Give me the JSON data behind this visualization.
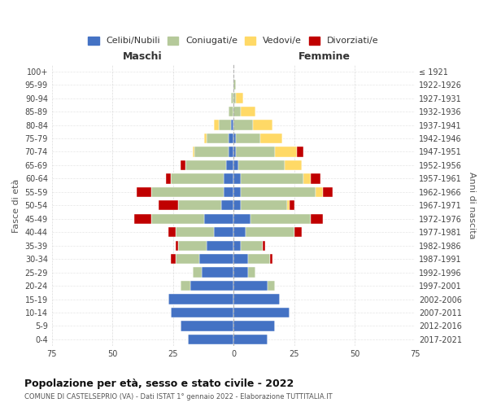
{
  "age_groups": [
    "0-4",
    "5-9",
    "10-14",
    "15-19",
    "20-24",
    "25-29",
    "30-34",
    "35-39",
    "40-44",
    "45-49",
    "50-54",
    "55-59",
    "60-64",
    "65-69",
    "70-74",
    "75-79",
    "80-84",
    "85-89",
    "90-94",
    "95-99",
    "100+"
  ],
  "birth_years": [
    "2017-2021",
    "2012-2016",
    "2007-2011",
    "2002-2006",
    "1997-2001",
    "1992-1996",
    "1987-1991",
    "1982-1986",
    "1977-1981",
    "1972-1976",
    "1967-1971",
    "1962-1966",
    "1957-1961",
    "1952-1956",
    "1947-1951",
    "1942-1946",
    "1937-1941",
    "1932-1936",
    "1927-1931",
    "1922-1926",
    "≤ 1921"
  ],
  "maschi": {
    "celibi": [
      19,
      22,
      26,
      27,
      18,
      13,
      14,
      11,
      8,
      12,
      5,
      4,
      4,
      3,
      2,
      2,
      1,
      0,
      0,
      0,
      0
    ],
    "coniugati": [
      0,
      0,
      0,
      0,
      4,
      4,
      10,
      12,
      16,
      22,
      18,
      30,
      22,
      17,
      14,
      9,
      5,
      2,
      1,
      0,
      0
    ],
    "vedovi": [
      0,
      0,
      0,
      0,
      0,
      0,
      0,
      0,
      0,
      0,
      0,
      0,
      0,
      0,
      1,
      1,
      2,
      0,
      0,
      0,
      0
    ],
    "divorziati": [
      0,
      0,
      0,
      0,
      0,
      0,
      2,
      1,
      3,
      7,
      8,
      6,
      2,
      2,
      0,
      0,
      0,
      0,
      0,
      0,
      0
    ]
  },
  "femmine": {
    "nubili": [
      14,
      17,
      23,
      19,
      14,
      6,
      6,
      3,
      5,
      7,
      3,
      3,
      3,
      2,
      1,
      1,
      0,
      0,
      0,
      0,
      0
    ],
    "coniugate": [
      0,
      0,
      0,
      0,
      3,
      3,
      9,
      9,
      20,
      25,
      19,
      31,
      26,
      19,
      16,
      10,
      8,
      3,
      1,
      1,
      0
    ],
    "vedove": [
      0,
      0,
      0,
      0,
      0,
      0,
      0,
      0,
      0,
      0,
      1,
      3,
      3,
      7,
      9,
      9,
      8,
      6,
      3,
      0,
      0
    ],
    "divorziate": [
      0,
      0,
      0,
      0,
      0,
      0,
      1,
      1,
      3,
      5,
      2,
      4,
      4,
      0,
      3,
      0,
      0,
      0,
      0,
      0,
      0
    ]
  },
  "colors": {
    "celibi": "#4472c4",
    "coniugati": "#b5c99a",
    "vedovi": "#ffd966",
    "divorziati": "#c00000"
  },
  "title": "Popolazione per età, sesso e stato civile - 2022",
  "subtitle": "COMUNE DI CASTELSEPRIO (VA) - Dati ISTAT 1° gennaio 2022 - Elaborazione TUTTITALIA.IT",
  "xlabel_left": "Maschi",
  "xlabel_right": "Femmine",
  "ylabel_left": "Fasce di età",
  "ylabel_right": "Anni di nascita",
  "xlim": 75,
  "legend_labels": [
    "Celibi/Nubili",
    "Coniugati/e",
    "Vedovi/e",
    "Divorziati/e"
  ],
  "background_color": "#ffffff",
  "grid_color": "#cccccc"
}
